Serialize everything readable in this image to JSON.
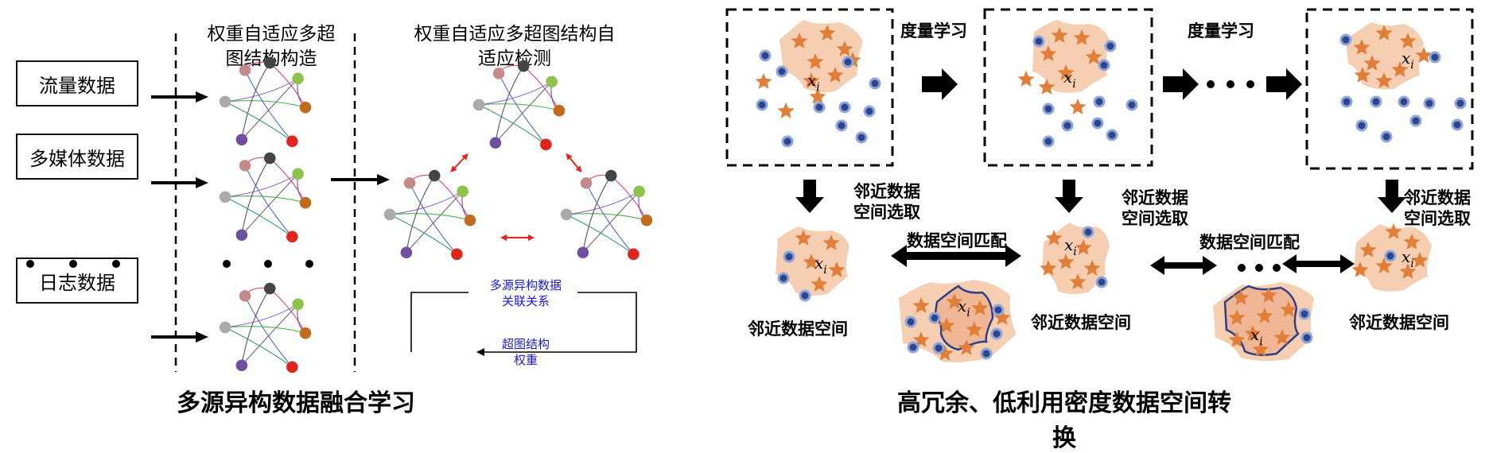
{
  "left_panel": {
    "sources": [
      "流量数据",
      "多媒体数据",
      "日志数据"
    ],
    "header_construct": [
      "权重自适应多超",
      "图结构构造"
    ],
    "header_detect": [
      "权重自适应多超图结构自",
      "适应检测"
    ],
    "relation_label": [
      "多源异构数据",
      "关联关系"
    ],
    "weight_label": [
      "超图结构",
      "权重"
    ],
    "caption": "多源异构数据融合学习",
    "colors": {
      "arrow": "#000000",
      "red_arrow": "#e0251c",
      "note": "#1a1ad8"
    }
  },
  "right_panel": {
    "metric_learning": "度量学习",
    "neighbor_select": [
      "邻近数据",
      "空间选取"
    ],
    "space_match": "数据空间匹配",
    "neighbor_space": "邻近数据空间",
    "point_label": "x",
    "point_sub": "i",
    "caption": "高冗余、低利用密度数据空间转换",
    "colors": {
      "blob": "#f6cfb2",
      "star": "#e07e3a",
      "dot": "#2d4591",
      "dot_ring": "#8fa5d6",
      "outline": "#2e3f86"
    }
  }
}
